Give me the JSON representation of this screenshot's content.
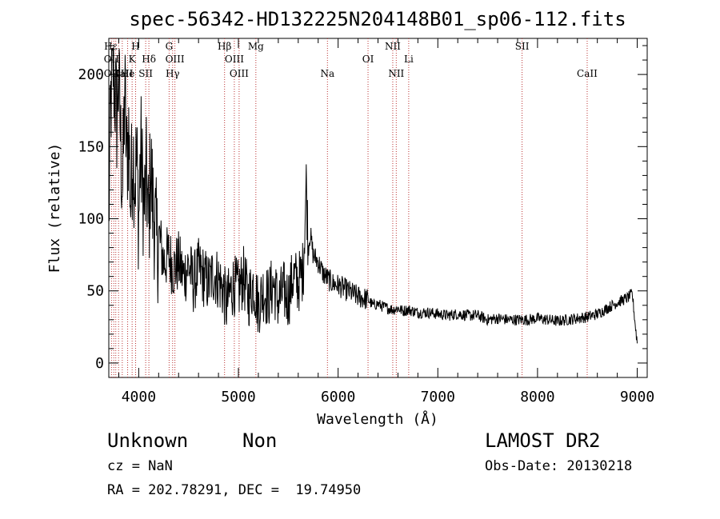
{
  "chart_data": {
    "type": "line",
    "title": "spec-56342-HD132225N204148B01_sp06-112.fits",
    "xlabel": "Wavelength (Å)",
    "ylabel": "Flux (relative)",
    "xlim": [
      3700,
      9100
    ],
    "ylim": [
      -10,
      225
    ],
    "x_ticks": [
      4000,
      5000,
      6000,
      7000,
      8000,
      9000
    ],
    "y_ticks": [
      0,
      50,
      100,
      150,
      200
    ],
    "grid": false,
    "line_markers": [
      {
        "label": "Hε",
        "wavelength": 3720,
        "row": 0
      },
      {
        "label": "H",
        "wavelength": 3969,
        "row": 0
      },
      {
        "label": "G",
        "wavelength": 4305,
        "row": 0
      },
      {
        "label": "Hβ",
        "wavelength": 4861,
        "row": 0
      },
      {
        "label": "Mg",
        "wavelength": 5175,
        "row": 0
      },
      {
        "label": "NII",
        "wavelength": 6548,
        "row": 0
      },
      {
        "label": "SII",
        "wavelength": 7845,
        "row": 0
      },
      {
        "label": "OII",
        "wavelength": 3727,
        "row": 1
      },
      {
        "label": "K",
        "wavelength": 3934,
        "row": 1
      },
      {
        "label": "Hδ",
        "wavelength": 4102,
        "row": 1
      },
      {
        "label": "OIII",
        "wavelength": 4363,
        "row": 1
      },
      {
        "label": "OIII",
        "wavelength": 4959,
        "row": 1
      },
      {
        "label": "OI",
        "wavelength": 6300,
        "row": 1
      },
      {
        "label": "Li",
        "wavelength": 6708,
        "row": 1
      },
      {
        "label": "OII",
        "wavelength": 3727,
        "row": 2
      },
      {
        "label": "CaII",
        "wavelength": 3840,
        "row": 2
      },
      {
        "label": "He",
        "wavelength": 3889,
        "row": 2
      },
      {
        "label": "SII",
        "wavelength": 4070,
        "row": 2
      },
      {
        "label": "Hγ",
        "wavelength": 4340,
        "row": 2
      },
      {
        "label": "OIII",
        "wavelength": 5007,
        "row": 2
      },
      {
        "label": "Na",
        "wavelength": 5893,
        "row": 2
      },
      {
        "label": "NII",
        "wavelength": 6583,
        "row": 2
      },
      {
        "label": "CaII",
        "wavelength": 8498,
        "row": 2
      }
    ],
    "marker_wavelengths": [
      3727,
      3750,
      3770,
      3798,
      3835,
      3889,
      3934,
      3969,
      4070,
      4102,
      4305,
      4340,
      4363,
      4861,
      4959,
      5007,
      5175,
      5893,
      6300,
      6548,
      6583,
      6708,
      7845,
      8498
    ],
    "series": [
      {
        "x": [
          3700,
          3720,
          3740,
          3760,
          3780,
          3800,
          3820,
          3840,
          3860,
          3880,
          3900,
          3920,
          3940,
          3960,
          3980,
          4000,
          4020,
          4040,
          4060,
          4080,
          4100,
          4120,
          4140,
          4160,
          4180,
          4200,
          4250,
          4300,
          4350,
          4400,
          4450,
          4500,
          4550,
          4600,
          4650,
          4700,
          4750,
          4800,
          4850,
          4880,
          4900,
          4950,
          5000,
          5050,
          5100,
          5150,
          5200,
          5250,
          5300,
          5350,
          5400,
          5450,
          5500,
          5550,
          5600,
          5650,
          5680,
          5700,
          5720,
          5750,
          5800,
          5850,
          5900,
          5950,
          6000,
          6050,
          6100,
          6150,
          6200,
          6250,
          6300,
          6350,
          6400,
          6450,
          6500,
          6550,
          6600,
          6650,
          6700,
          6750,
          6800,
          6900,
          7000,
          7100,
          7200,
          7300,
          7400,
          7500,
          7600,
          7700,
          7800,
          7900,
          8000,
          8100,
          8200,
          8300,
          8400,
          8500,
          8600,
          8700,
          8800,
          8900,
          8950,
          8990,
          9000
        ],
        "y": [
          100,
          180,
          210,
          190,
          170,
          200,
          150,
          120,
          190,
          140,
          160,
          110,
          150,
          130,
          140,
          100,
          150,
          120,
          110,
          130,
          90,
          140,
          110,
          100,
          80,
          90,
          70,
          75,
          65,
          70,
          60,
          68,
          55,
          65,
          60,
          55,
          62,
          58,
          50,
          40,
          45,
          55,
          50,
          60,
          45,
          55,
          40,
          50,
          45,
          55,
          42,
          50,
          45,
          60,
          55,
          65,
          125,
          80,
          90,
          75,
          70,
          62,
          58,
          55,
          54,
          52,
          50,
          48,
          46,
          45,
          44,
          40,
          41,
          39,
          38,
          37,
          38,
          36,
          37,
          36,
          35,
          35,
          34,
          33,
          34,
          33,
          33,
          30,
          31,
          30,
          30,
          30,
          31,
          30,
          29,
          30,
          31,
          32,
          34,
          38,
          42,
          45,
          48,
          20,
          15
        ]
      }
    ]
  },
  "footer": {
    "object_class": "Unknown",
    "object_subclass": "Non",
    "survey": "LAMOST DR2",
    "cz": "cz = NaN",
    "obs_date": "Obs-Date: 20130218",
    "coords": "RA = 202.78291, DEC =  19.74950"
  }
}
